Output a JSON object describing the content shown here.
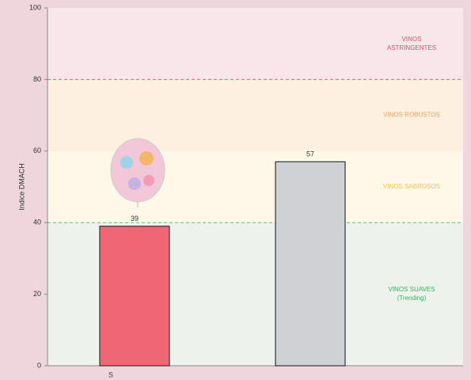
{
  "chart_data": {
    "type": "bar",
    "y_label": "Indice DMACH",
    "categories": [
      "S",
      null
    ],
    "values": [
      39,
      57
    ],
    "colors": [
      "#f06674",
      "#cfd1d4"
    ],
    "ylim": [
      0,
      100
    ],
    "yticks": [
      0,
      20,
      40,
      60,
      80,
      100
    ],
    "bands": [
      {
        "from": 0,
        "to": 40,
        "color": "#edf3ec",
        "text_color": "#3cae5c",
        "label": [
          "VINOS SUAVES",
          "(Trending)"
        ]
      },
      {
        "from": 40,
        "to": 60,
        "color": "#fdf8e8",
        "text_color": "#e8c25a",
        "label": [
          "VINOS SABROSOS"
        ]
      },
      {
        "from": 60,
        "to": 80,
        "color": "#fdf0e0",
        "text_color": "#e8a060",
        "label": [
          "VINOS ROBUSTOS"
        ]
      },
      {
        "from": 80,
        "to": 100,
        "color": "#f8e6ea",
        "text_color": "#e0506a",
        "label": [
          "VINOS",
          "ASTRINGENTES"
        ]
      }
    ],
    "thresholds": [
      {
        "value": 40,
        "color": "#5cc070"
      },
      {
        "value": 80,
        "color": "#e8607a"
      }
    ]
  }
}
